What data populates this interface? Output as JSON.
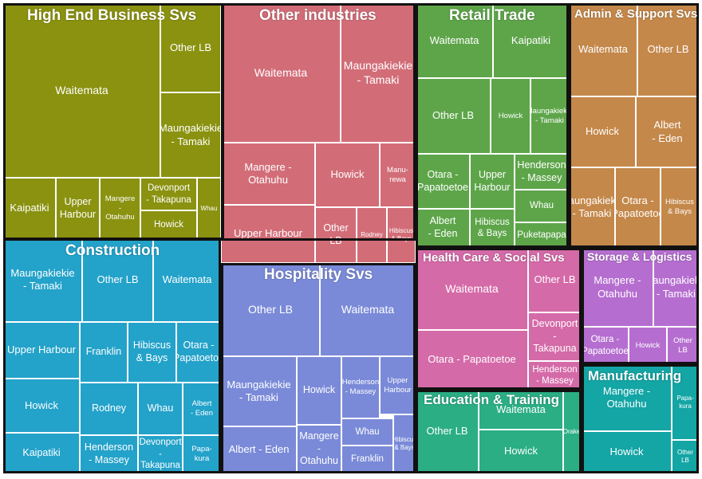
{
  "chart_data": {
    "type": "treemap",
    "groups": [
      {
        "name": "High End Business Svs",
        "color": "#8a9210",
        "children": [
          {
            "name": "Waitemata",
            "value": 43.3
          },
          {
            "name": "Other LB",
            "value": 14.6
          },
          {
            "name": "Maungakiekie\n- Tamaki",
            "value": 14.3
          },
          {
            "name": "Kaipatiki",
            "value": 5.1
          },
          {
            "name": "Upper\nHarbour",
            "value": 4.3
          },
          {
            "name": "Mangere\n-\nOtahuhu",
            "value": 3.9
          },
          {
            "name": "Devonport\n- Takapuna",
            "value": 3.1
          },
          {
            "name": "Howick",
            "value": 2.5
          },
          {
            "name": "Whau",
            "value": 2.1
          }
        ]
      },
      {
        "name": "Other industries",
        "color": "#d26d78",
        "children": [
          {
            "name": "Waitemata",
            "value": 26.1
          },
          {
            "name": "Maungakiekie\n- Tamaki",
            "value": 16.5
          },
          {
            "name": "Mangere -\nOtahuhu",
            "value": 9.8
          },
          {
            "name": "Howick",
            "value": 8.4
          },
          {
            "name": "Manu-\nrewa",
            "value": 5.4
          },
          {
            "name": "Upper Harbour",
            "value": 9.4
          },
          {
            "name": "Other\nLB",
            "value": 4.5
          },
          {
            "name": "Rodney",
            "value": 3.7
          },
          {
            "name": "Hibiscus\n& Bays",
            "value": 3.6
          }
        ]
      },
      {
        "name": "Retail Trade",
        "color": "#5ea54a",
        "children": [
          {
            "name": "Waitemata",
            "value": 8.8
          },
          {
            "name": "Kaipatiki",
            "value": 8.4
          },
          {
            "name": "Other LB",
            "value": 8.0
          },
          {
            "name": "Howick",
            "value": 4.1
          },
          {
            "name": "Maungakiekie\n- Tamaki",
            "value": 4.0
          },
          {
            "name": "Otara -\nPapatoetoe",
            "value": 5.5
          },
          {
            "name": "Upper\nHarbour",
            "value": 4.6
          },
          {
            "name": "Henderson\n- Massey",
            "value": 3.8
          },
          {
            "name": "Albert\n- Eden",
            "value": 4.4
          },
          {
            "name": "Hibiscus\n& Bays",
            "value": 4.4
          },
          {
            "name": "Whau",
            "value": 3.0
          },
          {
            "name": "Puketapapa",
            "value": 2.2
          }
        ]
      },
      {
        "name": "Admin & Support Svs",
        "color": "#c4884a",
        "children": [
          {
            "name": "Waitemata",
            "value": 8.7
          },
          {
            "name": "Other LB",
            "value": 7.6
          },
          {
            "name": "Howick",
            "value": 7.0
          },
          {
            "name": "Albert\n- Eden",
            "value": 6.0
          },
          {
            "name": "Maungakiekie\n- Tamaki",
            "value": 5.3
          },
          {
            "name": "Otara -\nPapatoetoe",
            "value": 5.3
          },
          {
            "name": "Hibiscus\n& Bays",
            "value": 4.3
          }
        ]
      },
      {
        "name": "Construction",
        "color": "#23a2ca",
        "children": [
          {
            "name": "Maungakiekie\n- Tamaki",
            "value": 9.7
          },
          {
            "name": "Other LB",
            "value": 9.4
          },
          {
            "name": "Waitemata",
            "value": 8.9
          },
          {
            "name": "Upper Harbour",
            "value": 6.6
          },
          {
            "name": "Franklin",
            "value": 4.2
          },
          {
            "name": "Hibiscus\n& Bays",
            "value": 4.2
          },
          {
            "name": "Otara -\nPapatoetoe",
            "value": 3.8
          },
          {
            "name": "Howick",
            "value": 6.6
          },
          {
            "name": "Rodney",
            "value": 5.1
          },
          {
            "name": "Whau",
            "value": 4.1
          },
          {
            "name": "Albert\n- Eden",
            "value": 2.8
          },
          {
            "name": "Kaipatiki",
            "value": 6.1
          },
          {
            "name": "Henderson\n- Massey",
            "value": 5.0
          },
          {
            "name": "Devonport\n-\nTakapuna",
            "value": 3.2
          },
          {
            "name": "Papa-\nkura",
            "value": 2.7
          }
        ]
      },
      {
        "name": "Hospitality Svs",
        "color": "#7a8ad8",
        "children": [
          {
            "name": "Other LB",
            "value": 13.1
          },
          {
            "name": "Waitemata",
            "value": 12.7
          },
          {
            "name": "Maungakiekie\n- Tamaki",
            "value": 9.4
          },
          {
            "name": "Howick",
            "value": 4.4
          },
          {
            "name": "Henderson\n- Massey",
            "value": 3.6
          },
          {
            "name": "Upper\nHarbour",
            "value": 3.1
          },
          {
            "name": "Albert - Eden",
            "value": 6.2
          },
          {
            "name": "Mangere\n-\nOtahuhu",
            "value": 3.5
          },
          {
            "name": "Whau",
            "value": 2.6
          },
          {
            "name": "Franklin",
            "value": 2.5
          },
          {
            "name": "Hibiscus\n& Bays",
            "value": 1.2
          }
        ]
      },
      {
        "name": "Health Care & Social Svs",
        "color": "#d56aa8",
        "children": [
          {
            "name": "Waitemata",
            "value": 11.8
          },
          {
            "name": "Other LB",
            "value": 5.6
          },
          {
            "name": "Devonport\n-\nTakapuna",
            "value": 5.1
          },
          {
            "name": "Otara - Papatoetoe",
            "value": 11.5
          },
          {
            "name": "Henderson\n- Massey",
            "value": 2.3
          }
        ]
      },
      {
        "name": "Storage & Logistics",
        "color": "#b56ed0",
        "children": [
          {
            "name": "Mangere -\nOtahuhu",
            "value": 6.8
          },
          {
            "name": "Maungakiekie\n- Tamaki",
            "value": 4.4
          },
          {
            "name": "Otara -\nPapatoetoe",
            "value": 2.2
          },
          {
            "name": "Howick",
            "value": 1.8
          },
          {
            "name": "Other\nLB",
            "value": 1.7
          }
        ]
      },
      {
        "name": "Education & Training",
        "color": "#2bae84",
        "children": [
          {
            "name": "Other LB",
            "value": 6.7
          },
          {
            "name": "Waitemata",
            "value": 3.6
          },
          {
            "name": "Howick",
            "value": 5.3
          },
          {
            "name": "Orakei",
            "value": 1.4
          }
        ]
      },
      {
        "name": "Manufacturing",
        "color": "#14a5a5",
        "children": [
          {
            "name": "Mangere -\nOtahuhu",
            "value": 6.2
          },
          {
            "name": "Papa-\nkura",
            "value": 1.9
          },
          {
            "name": "Howick",
            "value": 4.2
          },
          {
            "name": "Other\nLB",
            "value": 1.8
          }
        ]
      }
    ]
  }
}
